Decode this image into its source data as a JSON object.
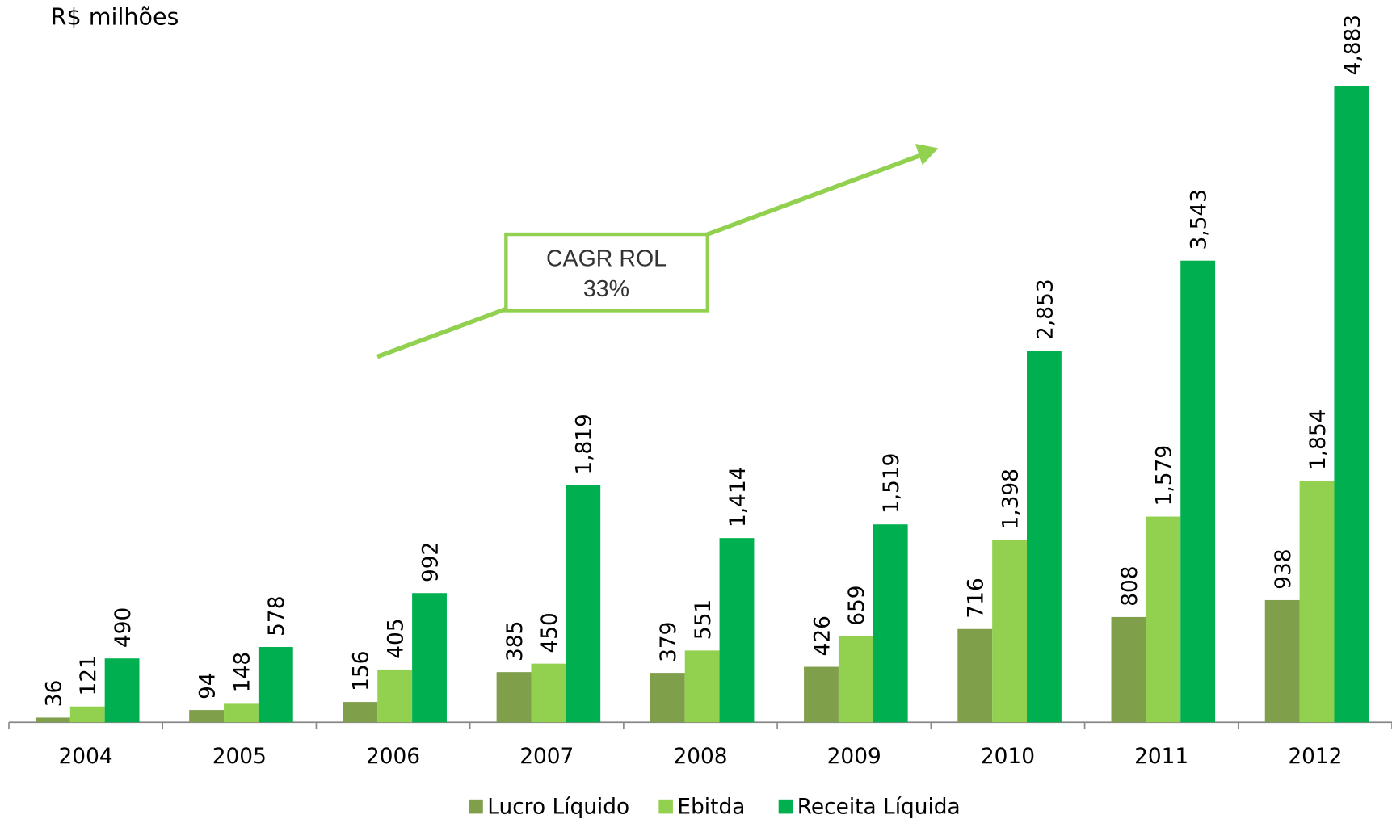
{
  "chart_data": {
    "type": "bar",
    "title": "R$ milhões",
    "categories": [
      "2004",
      "2005",
      "2006",
      "2007",
      "2008",
      "2009",
      "2010",
      "2011",
      "2012"
    ],
    "series": [
      {
        "name": "Lucro Líquido",
        "color": "#7f9f4a",
        "values": [
          36,
          94,
          156,
          385,
          379,
          426,
          716,
          808,
          938
        ]
      },
      {
        "name": "Ebitda",
        "color": "#92d050",
        "values": [
          121,
          148,
          405,
          450,
          551,
          659,
          1398,
          1579,
          1854
        ],
        "value_labels": [
          "121",
          "148",
          "405",
          "450",
          "551",
          "659",
          "1,398",
          "1,579",
          "1,854"
        ]
      },
      {
        "name": "Receita Líquida",
        "color": "#00b050",
        "values": [
          490,
          578,
          992,
          1819,
          1414,
          1519,
          2853,
          3543,
          4883
        ],
        "value_labels": [
          "490",
          "578",
          "992",
          "1,819",
          "1,414",
          "1,519",
          "2,853",
          "3,543",
          "4,883"
        ]
      }
    ],
    "annotations": [
      "CAGR ROL",
      "33%"
    ],
    "legend": "bottom"
  }
}
